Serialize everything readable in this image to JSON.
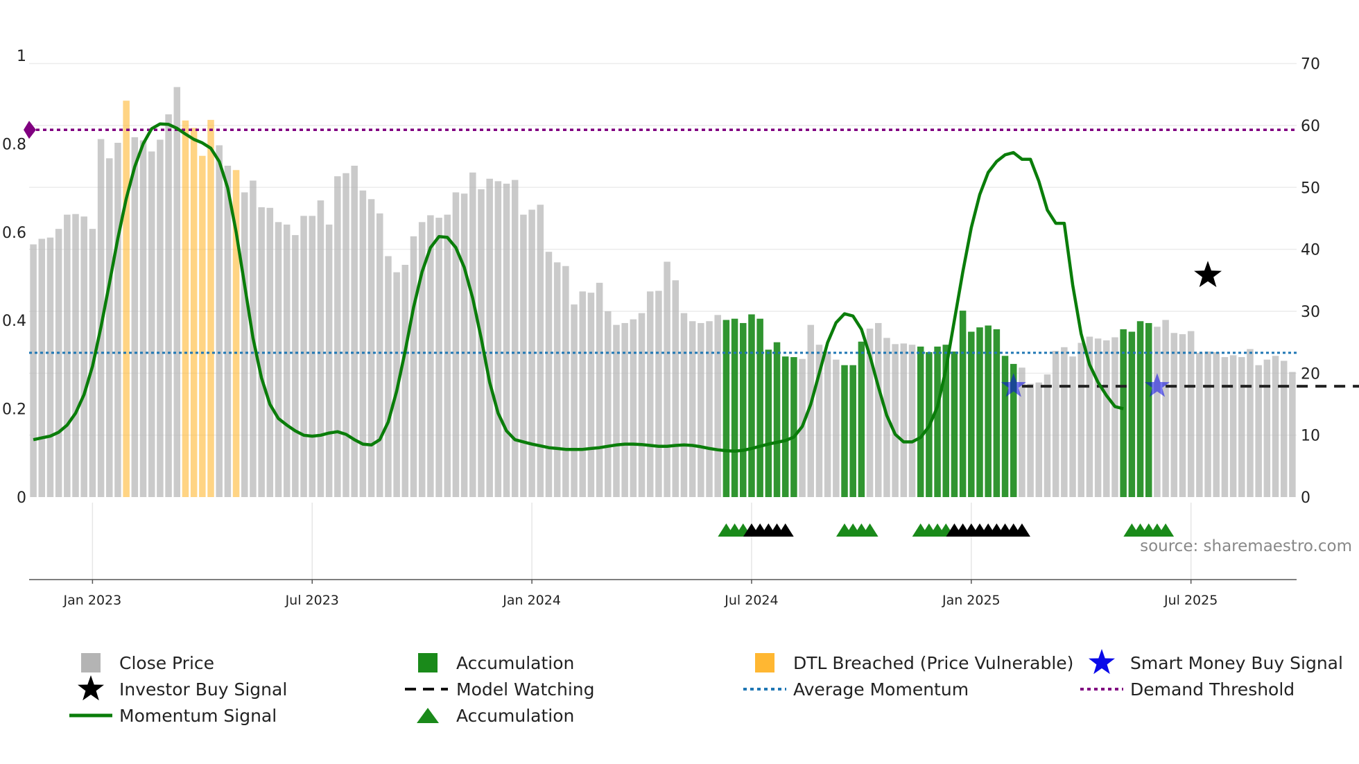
{
  "chart_data": {
    "type": "bar",
    "source": "source: sharemaestro.com",
    "left_axis": {
      "ticks": [
        "0",
        "0.2",
        "0.4",
        "0.6",
        "0.8",
        "1"
      ],
      "values": [
        0,
        0.2,
        0.4,
        0.6,
        0.8,
        1.0
      ],
      "ylim": [
        0,
        1.0
      ]
    },
    "right_axis": {
      "ticks": [
        "0",
        "10",
        "20",
        "30",
        "40",
        "50",
        "60",
        "70"
      ],
      "values": [
        0,
        10,
        20,
        30,
        40,
        50,
        60,
        70
      ],
      "ylim": [
        0,
        71.3
      ]
    },
    "x_axis": {
      "labels": [
        "Jan 2023",
        "Jul 2023",
        "Jan 2024",
        "Jul 2024",
        "Jan 2025",
        "Jul 2025"
      ],
      "bar_index": [
        7,
        33,
        59,
        85,
        111,
        137
      ]
    },
    "colors": {
      "close": "#b4b4b4",
      "accumulation": "#1a8a1a",
      "dtl": "#ffb732",
      "momentum": "#0a7d0a",
      "average": "#1f77b4",
      "demand": "#800080",
      "investor_star": "#000000",
      "smart_star": "#0a0ae8"
    },
    "close_prices": [
      40.8,
      41.7,
      41.9,
      43.3,
      45.6,
      45.7,
      45.3,
      43.3,
      57.8,
      54.7,
      57.2,
      64,
      58.1,
      57.6,
      55.8,
      57.7,
      61.8,
      66.2,
      60.8,
      59.6,
      55.1,
      60.9,
      56.8,
      53.5,
      52.8,
      49.2,
      51.1,
      46.8,
      46.7,
      44.4,
      44,
      42.3,
      45.4,
      45.4,
      47.9,
      44,
      51.8,
      52.3,
      53.5,
      49.5,
      48.1,
      45.8,
      38.9,
      36.3,
      37.5,
      42.1,
      44.4,
      45.5,
      45.1,
      45.6,
      49.2,
      49,
      52.4,
      49.7,
      51.4,
      51,
      50.6,
      51.2,
      45.6,
      46.4,
      47.2,
      39.6,
      37.9,
      37.3,
      31.1,
      33.2,
      33,
      34.6,
      30,
      27.8,
      28.1,
      28.7,
      29.7,
      33.2,
      33.3,
      38,
      35,
      29.7,
      28.4,
      28.1,
      28.4,
      29.4,
      28.6,
      28.8,
      28.1,
      29.5,
      28.8,
      23.8,
      25,
      22.7,
      22.6,
      22.3,
      27.8,
      24.6,
      23.5,
      22.2,
      21.3,
      21.3,
      25.1,
      27.2,
      28.1,
      25.7,
      24.7,
      24.8,
      24.6,
      24.3,
      23.4,
      24.3,
      24.6,
      23.5,
      30.1,
      26.7,
      27.4,
      27.7,
      27.1,
      22.8,
      21.5,
      20.9,
      18.3,
      18.5,
      19.8,
      23.6,
      24.2,
      22.7,
      24.9,
      25.9,
      25.6,
      25.3,
      25.8,
      27.1,
      26.7,
      28.4,
      28.1,
      27.5,
      28.6,
      26.5,
      26.3,
      26.8,
      23.3,
      23.5,
      23.4,
      22.6,
      22.9,
      22.6,
      23.9,
      21.3,
      22.2,
      22.8,
      22,
      20.2
    ],
    "bar_category": [
      "c",
      "c",
      "c",
      "c",
      "c",
      "c",
      "c",
      "c",
      "c",
      "c",
      "c",
      "d",
      "c",
      "c",
      "c",
      "c",
      "c",
      "c",
      "d",
      "d",
      "d",
      "d",
      "c",
      "c",
      "d",
      "c",
      "c",
      "c",
      "c",
      "c",
      "c",
      "c",
      "c",
      "c",
      "c",
      "c",
      "c",
      "c",
      "c",
      "c",
      "c",
      "c",
      "c",
      "c",
      "c",
      "c",
      "c",
      "c",
      "c",
      "c",
      "c",
      "c",
      "c",
      "c",
      "c",
      "c",
      "c",
      "c",
      "c",
      "c",
      "c",
      "c",
      "c",
      "c",
      "c",
      "c",
      "c",
      "c",
      "c",
      "c",
      "c",
      "c",
      "c",
      "c",
      "c",
      "c",
      "c",
      "c",
      "c",
      "c",
      "c",
      "c",
      "a",
      "a",
      "a",
      "a",
      "a",
      "a",
      "a",
      "a",
      "a",
      "c",
      "c",
      "c",
      "c",
      "c",
      "a",
      "a",
      "a",
      "c",
      "c",
      "c",
      "c",
      "c",
      "c",
      "a",
      "a",
      "a",
      "a",
      "a",
      "a",
      "a",
      "a",
      "a",
      "a",
      "a",
      "a",
      "c",
      "c",
      "c",
      "c",
      "c",
      "c",
      "c",
      "c",
      "c",
      "c",
      "c",
      "c",
      "a",
      "a",
      "a",
      "a",
      "c",
      "c",
      "c",
      "c",
      "c",
      "c",
      "c",
      "c",
      "c",
      "c",
      "c",
      "c",
      "c",
      "c",
      "c",
      "c",
      "c",
      "c",
      "c",
      "c",
      "c"
    ],
    "momentum_signal": [
      0.13,
      0.134,
      0.138,
      0.147,
      0.163,
      0.19,
      0.232,
      0.296,
      0.385,
      0.484,
      0.586,
      0.676,
      0.748,
      0.8,
      0.834,
      0.845,
      0.844,
      0.835,
      0.822,
      0.81,
      0.802,
      0.79,
      0.76,
      0.7,
      0.6,
      0.48,
      0.36,
      0.27,
      0.21,
      0.178,
      0.163,
      0.15,
      0.14,
      0.138,
      0.14,
      0.145,
      0.148,
      0.142,
      0.13,
      0.12,
      0.118,
      0.13,
      0.17,
      0.24,
      0.33,
      0.43,
      0.51,
      0.565,
      0.59,
      0.588,
      0.565,
      0.52,
      0.45,
      0.36,
      0.26,
      0.19,
      0.15,
      0.13,
      0.125,
      0.12,
      0.116,
      0.112,
      0.11,
      0.108,
      0.108,
      0.108,
      0.11,
      0.112,
      0.115,
      0.118,
      0.12,
      0.12,
      0.119,
      0.117,
      0.115,
      0.115,
      0.117,
      0.118,
      0.117,
      0.114,
      0.11,
      0.107,
      0.105,
      0.104,
      0.106,
      0.11,
      0.115,
      0.12,
      0.124,
      0.128,
      0.136,
      0.16,
      0.21,
      0.28,
      0.35,
      0.395,
      0.415,
      0.41,
      0.38,
      0.32,
      0.25,
      0.185,
      0.142,
      0.125,
      0.125,
      0.135,
      0.16,
      0.205,
      0.29,
      0.4,
      0.51,
      0.61,
      0.685,
      0.735,
      0.76,
      0.775,
      0.78,
      0.765,
      0.765,
      0.715,
      0.65,
      0.62,
      0.62,
      0.48,
      0.37,
      0.3,
      0.26,
      0.23,
      0.205,
      0.2
    ],
    "momentum_offset": 0,
    "average_momentum": 23.3,
    "demand_threshold": 59.3,
    "model_watching_level": 17.9,
    "model_watching_spans": [
      [
        117,
        130
      ],
      [
        134,
        158
      ]
    ],
    "accumulation_markers": {
      "green": [
        [
          82,
          85
        ],
        [
          96,
          100
        ],
        [
          105,
          109
        ],
        [
          130,
          135
        ]
      ],
      "black": [
        [
          85,
          90
        ],
        [
          109,
          118
        ]
      ]
    },
    "investor_buy_signal": {
      "index": 139,
      "value": 35.8
    },
    "smart_money_buy_signals": [
      {
        "index": 116,
        "value": 17.9
      },
      {
        "index": 133,
        "value": 17.9
      }
    ],
    "legend": [
      "Close Price",
      "Accumulation",
      "DTL Breached (Price Vulnerable)",
      "Smart Money Buy Signal",
      "Investor Buy Signal",
      "Model Watching",
      "Average Momentum",
      "Demand Threshold",
      "Momentum Signal",
      "Accumulation"
    ]
  }
}
